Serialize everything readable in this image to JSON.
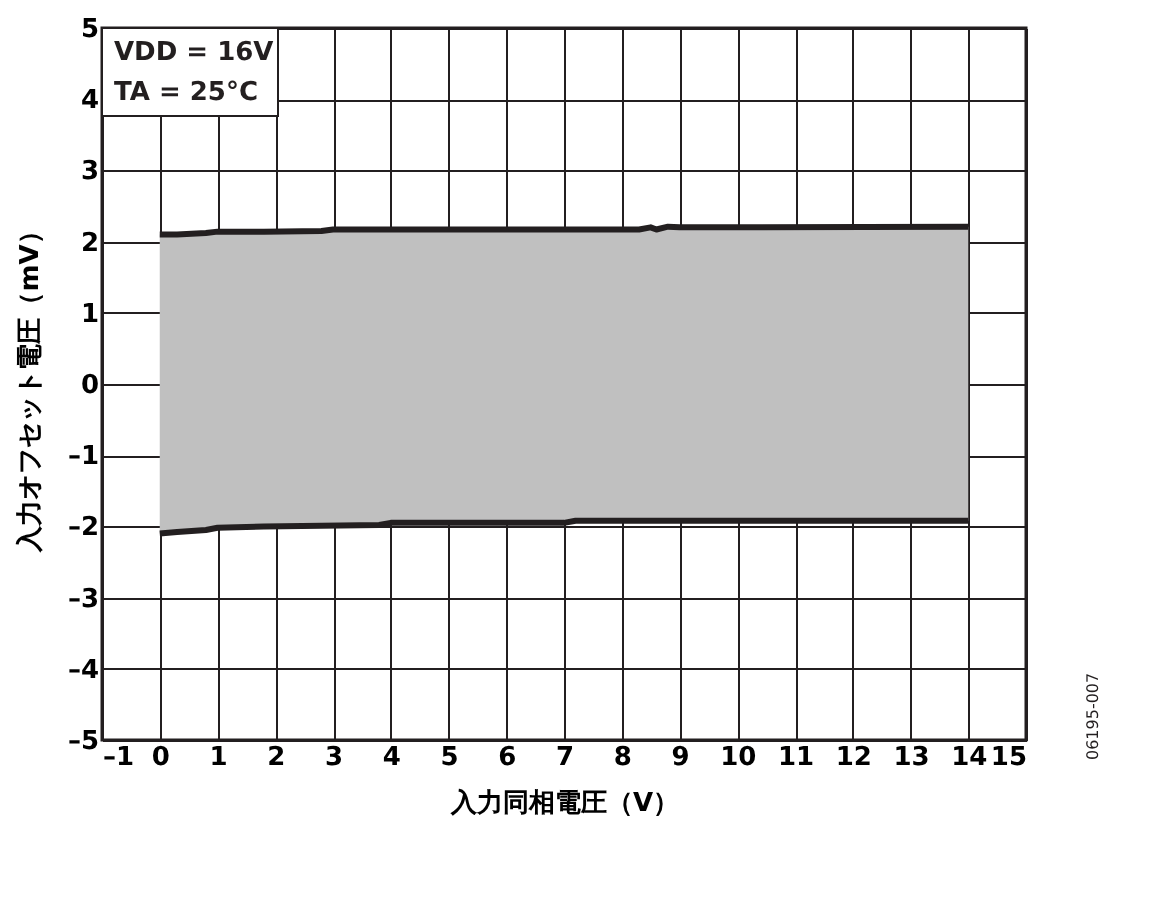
{
  "chart_data": {
    "type": "line",
    "xlabel": "入力同相電圧（V）",
    "ylabel": "入力オフセット電圧（mV）",
    "xlim": [
      -1,
      15
    ],
    "ylim": [
      -5,
      5
    ],
    "xticks": [
      {
        "value": -1,
        "label": "–1"
      },
      0,
      1,
      2,
      3,
      4,
      5,
      6,
      7,
      8,
      9,
      10,
      11,
      12,
      13,
      14,
      15
    ],
    "yticks": [
      {
        "value": -5,
        "label": "–5"
      },
      {
        "value": -4,
        "label": "–4"
      },
      {
        "value": -3,
        "label": "–3"
      },
      {
        "value": -2,
        "label": "–2"
      },
      {
        "value": -1,
        "label": "–1"
      },
      0,
      1,
      2,
      3,
      4,
      5
    ],
    "grid": true,
    "legend": false,
    "line_style": "solid",
    "marker": "none",
    "series": [
      {
        "color": "#231f20",
        "x": [
          0,
          0.3,
          0.8,
          1,
          1.8,
          2.8,
          3,
          3.8,
          4,
          7,
          7.2,
          8.3,
          8.5,
          8.6,
          8.8,
          9,
          14
        ],
        "values": [
          2.1,
          2.1,
          2.12,
          2.14,
          2.14,
          2.15,
          2.17,
          2.17,
          2.17,
          2.17,
          2.17,
          2.17,
          2.2,
          2.17,
          2.21,
          2.2,
          2.21
        ],
        "lower": [
          -2.1,
          -2.08,
          -2.05,
          -2.02,
          -2.0,
          -2.0,
          -2.0,
          -1.98,
          -1.95,
          -1.95,
          -1.92,
          -1.92,
          -1.92,
          -1.92,
          -1.92,
          -1.92,
          -1.92
        ],
        "upper": [
          2.1,
          2.1,
          2.12,
          2.14,
          2.14,
          2.15,
          2.17,
          2.17,
          2.17,
          2.17,
          2.17,
          2.17,
          2.2,
          2.17,
          2.21,
          2.2,
          2.21
        ]
      },
      {
        "color": "#231f20",
        "x": [
          0,
          0.3,
          0.8,
          1,
          1.8,
          3.8,
          4,
          7,
          7.2,
          14
        ],
        "values": [
          -2.1,
          -2.08,
          -2.05,
          -2.02,
          -2.0,
          -1.98,
          -1.95,
          -1.95,
          -1.92,
          -1.92
        ]
      }
    ],
    "annotations": [
      "VDD = 16V",
      "TA = 25°C",
      "06195-007"
    ]
  }
}
